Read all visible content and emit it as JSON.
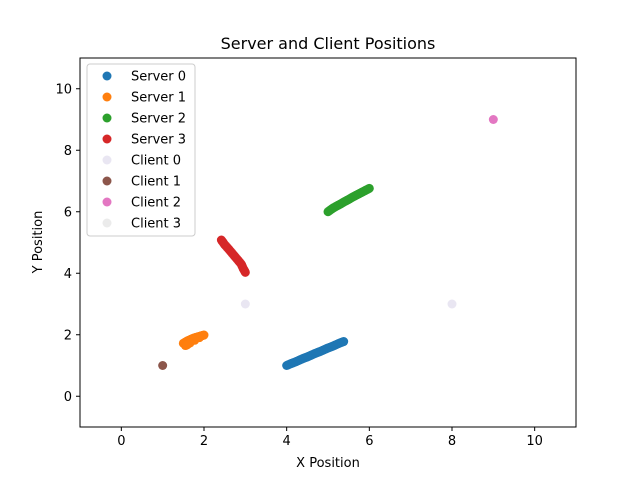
{
  "chart_data": {
    "type": "scatter",
    "title": "Server and Client Positions",
    "xlabel": "X Position",
    "ylabel": "Y Position",
    "xlim": [
      -1,
      11
    ],
    "ylim": [
      -1,
      11
    ],
    "xticks": [
      0,
      2,
      4,
      6,
      8,
      10
    ],
    "yticks": [
      0,
      2,
      4,
      6,
      8,
      10
    ],
    "grid": false,
    "legend_position": "top-left",
    "series": [
      {
        "name": "Server 0",
        "color": "#1f77b4",
        "kind": "trail",
        "x": [
          4.0,
          4.1,
          4.2,
          4.3,
          4.4,
          4.5,
          4.6,
          4.7,
          4.8,
          4.9,
          5.0,
          5.1,
          5.2,
          5.3,
          5.38
        ],
        "y": [
          1.0,
          1.06,
          1.11,
          1.17,
          1.23,
          1.28,
          1.34,
          1.4,
          1.45,
          1.51,
          1.57,
          1.62,
          1.68,
          1.74,
          1.78
        ]
      },
      {
        "name": "Server 1",
        "color": "#ff7f0e",
        "kind": "trail",
        "x": [
          1.5,
          1.55,
          1.6,
          1.65,
          1.7,
          1.75,
          1.8,
          1.85,
          1.9,
          1.95,
          2.0,
          1.55,
          1.6
        ],
        "y": [
          1.72,
          1.76,
          1.8,
          1.83,
          1.86,
          1.89,
          1.91,
          1.93,
          1.95,
          1.97,
          1.99,
          1.65,
          1.68
        ]
      },
      {
        "name": "Server 2",
        "color": "#2ca02c",
        "kind": "trail",
        "x": [
          5.0,
          5.1,
          5.2,
          5.3,
          5.4,
          5.5,
          5.6,
          5.7,
          5.8,
          5.9,
          6.0
        ],
        "y": [
          6.0,
          6.1,
          6.18,
          6.25,
          6.33,
          6.4,
          6.48,
          6.55,
          6.62,
          6.69,
          6.76
        ]
      },
      {
        "name": "Server 3",
        "color": "#d62728",
        "kind": "trail",
        "x": [
          2.42,
          2.5,
          2.6,
          2.7,
          2.8,
          2.9,
          2.95,
          3.0
        ],
        "y": [
          5.08,
          4.93,
          4.78,
          4.62,
          4.46,
          4.3,
          4.15,
          4.03
        ]
      },
      {
        "name": "Client 0",
        "color": "#e9e6f2",
        "kind": "points",
        "x": [
          3.0,
          8.0
        ],
        "y": [
          3.0,
          3.0
        ]
      },
      {
        "name": "Client 1",
        "color": "#8c564b",
        "kind": "points",
        "x": [
          1.0
        ],
        "y": [
          1.0
        ]
      },
      {
        "name": "Client 2",
        "color": "#e377c2",
        "kind": "points",
        "x": [
          9.0
        ],
        "y": [
          9.0
        ]
      },
      {
        "name": "Client 3",
        "color": "#ebebeb",
        "kind": "points",
        "x": [],
        "y": []
      }
    ]
  }
}
